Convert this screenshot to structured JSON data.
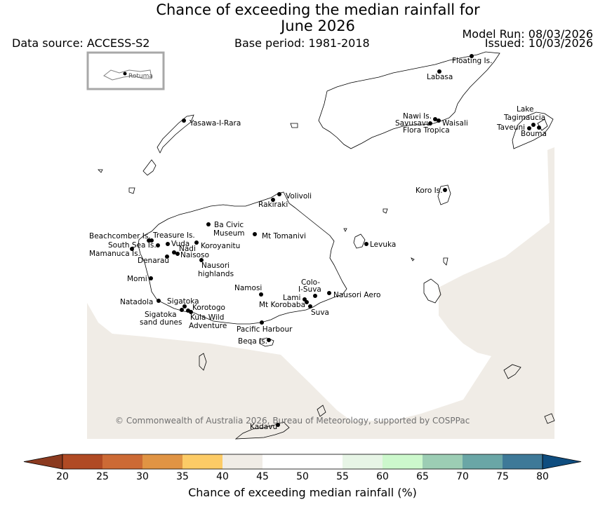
{
  "title": {
    "line1": "Chance of exceeding the median rainfall for",
    "line2": "June 2026"
  },
  "header": {
    "data_source": "Data source: ACCESS-S2",
    "base_period": "Base period: 1981-2018",
    "model_run": "Model Run: 08/03/2026",
    "issued": "Issued: 10/03/2026"
  },
  "inset": {
    "label": "Rotuma"
  },
  "places": [
    {
      "name": "Floating Is."
    },
    {
      "name": "Labasa"
    },
    {
      "name": "Yasawa-I-Rara"
    },
    {
      "name": "Nawi Is."
    },
    {
      "name": "Savusavu"
    },
    {
      "name": "Waisali"
    },
    {
      "name": "Flora Tropica"
    },
    {
      "name": "Lake"
    },
    {
      "name": "Tagimaucia"
    },
    {
      "name": "Taveuni"
    },
    {
      "name": "Bouma"
    },
    {
      "name": "Volivoli"
    },
    {
      "name": "Rakiraki"
    },
    {
      "name": "Koro Is."
    },
    {
      "name": "Ba Civic"
    },
    {
      "name": "Museum"
    },
    {
      "name": "Mt Tomanivi"
    },
    {
      "name": "Beachcomber Is."
    },
    {
      "name": "Treasure Is."
    },
    {
      "name": "South Sea Is."
    },
    {
      "name": "Vuda"
    },
    {
      "name": "Koroyanitu"
    },
    {
      "name": "Nadi"
    },
    {
      "name": "Mamanuca Is."
    },
    {
      "name": "Naisoso"
    },
    {
      "name": "Denarau"
    },
    {
      "name": "Levuka"
    },
    {
      "name": "Nausori"
    },
    {
      "name": "highlands"
    },
    {
      "name": "Momi"
    },
    {
      "name": "Colo-"
    },
    {
      "name": "I-Suva"
    },
    {
      "name": "Namosi"
    },
    {
      "name": "Nausori Aero"
    },
    {
      "name": "Lami"
    },
    {
      "name": "Natadola"
    },
    {
      "name": "Sigatoka"
    },
    {
      "name": "Mt Korobaba"
    },
    {
      "name": "Korotogo"
    },
    {
      "name": "Suva"
    },
    {
      "name": "Sigatoka"
    },
    {
      "name": "sand dunes"
    },
    {
      "name": "Kula Wild"
    },
    {
      "name": "Adventure"
    },
    {
      "name": "Pacific Harbour"
    },
    {
      "name": "Beqa Is."
    },
    {
      "name": "Kadavu"
    }
  ],
  "shading": {
    "category": "40-45",
    "color": "#f0ece6"
  },
  "copyright": "© Commonwealth of Australia 2026, Bureau of Meteorology, supported by COSPPac",
  "colorbar": {
    "title": "Chance of exceeding median rainfall (%)",
    "ticks": [
      "20",
      "25",
      "30",
      "35",
      "40",
      "45",
      "50",
      "55",
      "60",
      "65",
      "70",
      "75",
      "80"
    ],
    "under_color": "#8b3a1f",
    "over_color": "#0f4d7f",
    "colors": [
      "#b04a24",
      "#cc6a35",
      "#e09444",
      "#fccb66",
      "#f0ece6",
      "#ffffff",
      "#ffffff",
      "#e7f5e6",
      "#ccf8cc",
      "#9ccdb4",
      "#6aa6a6",
      "#3e7998"
    ]
  }
}
